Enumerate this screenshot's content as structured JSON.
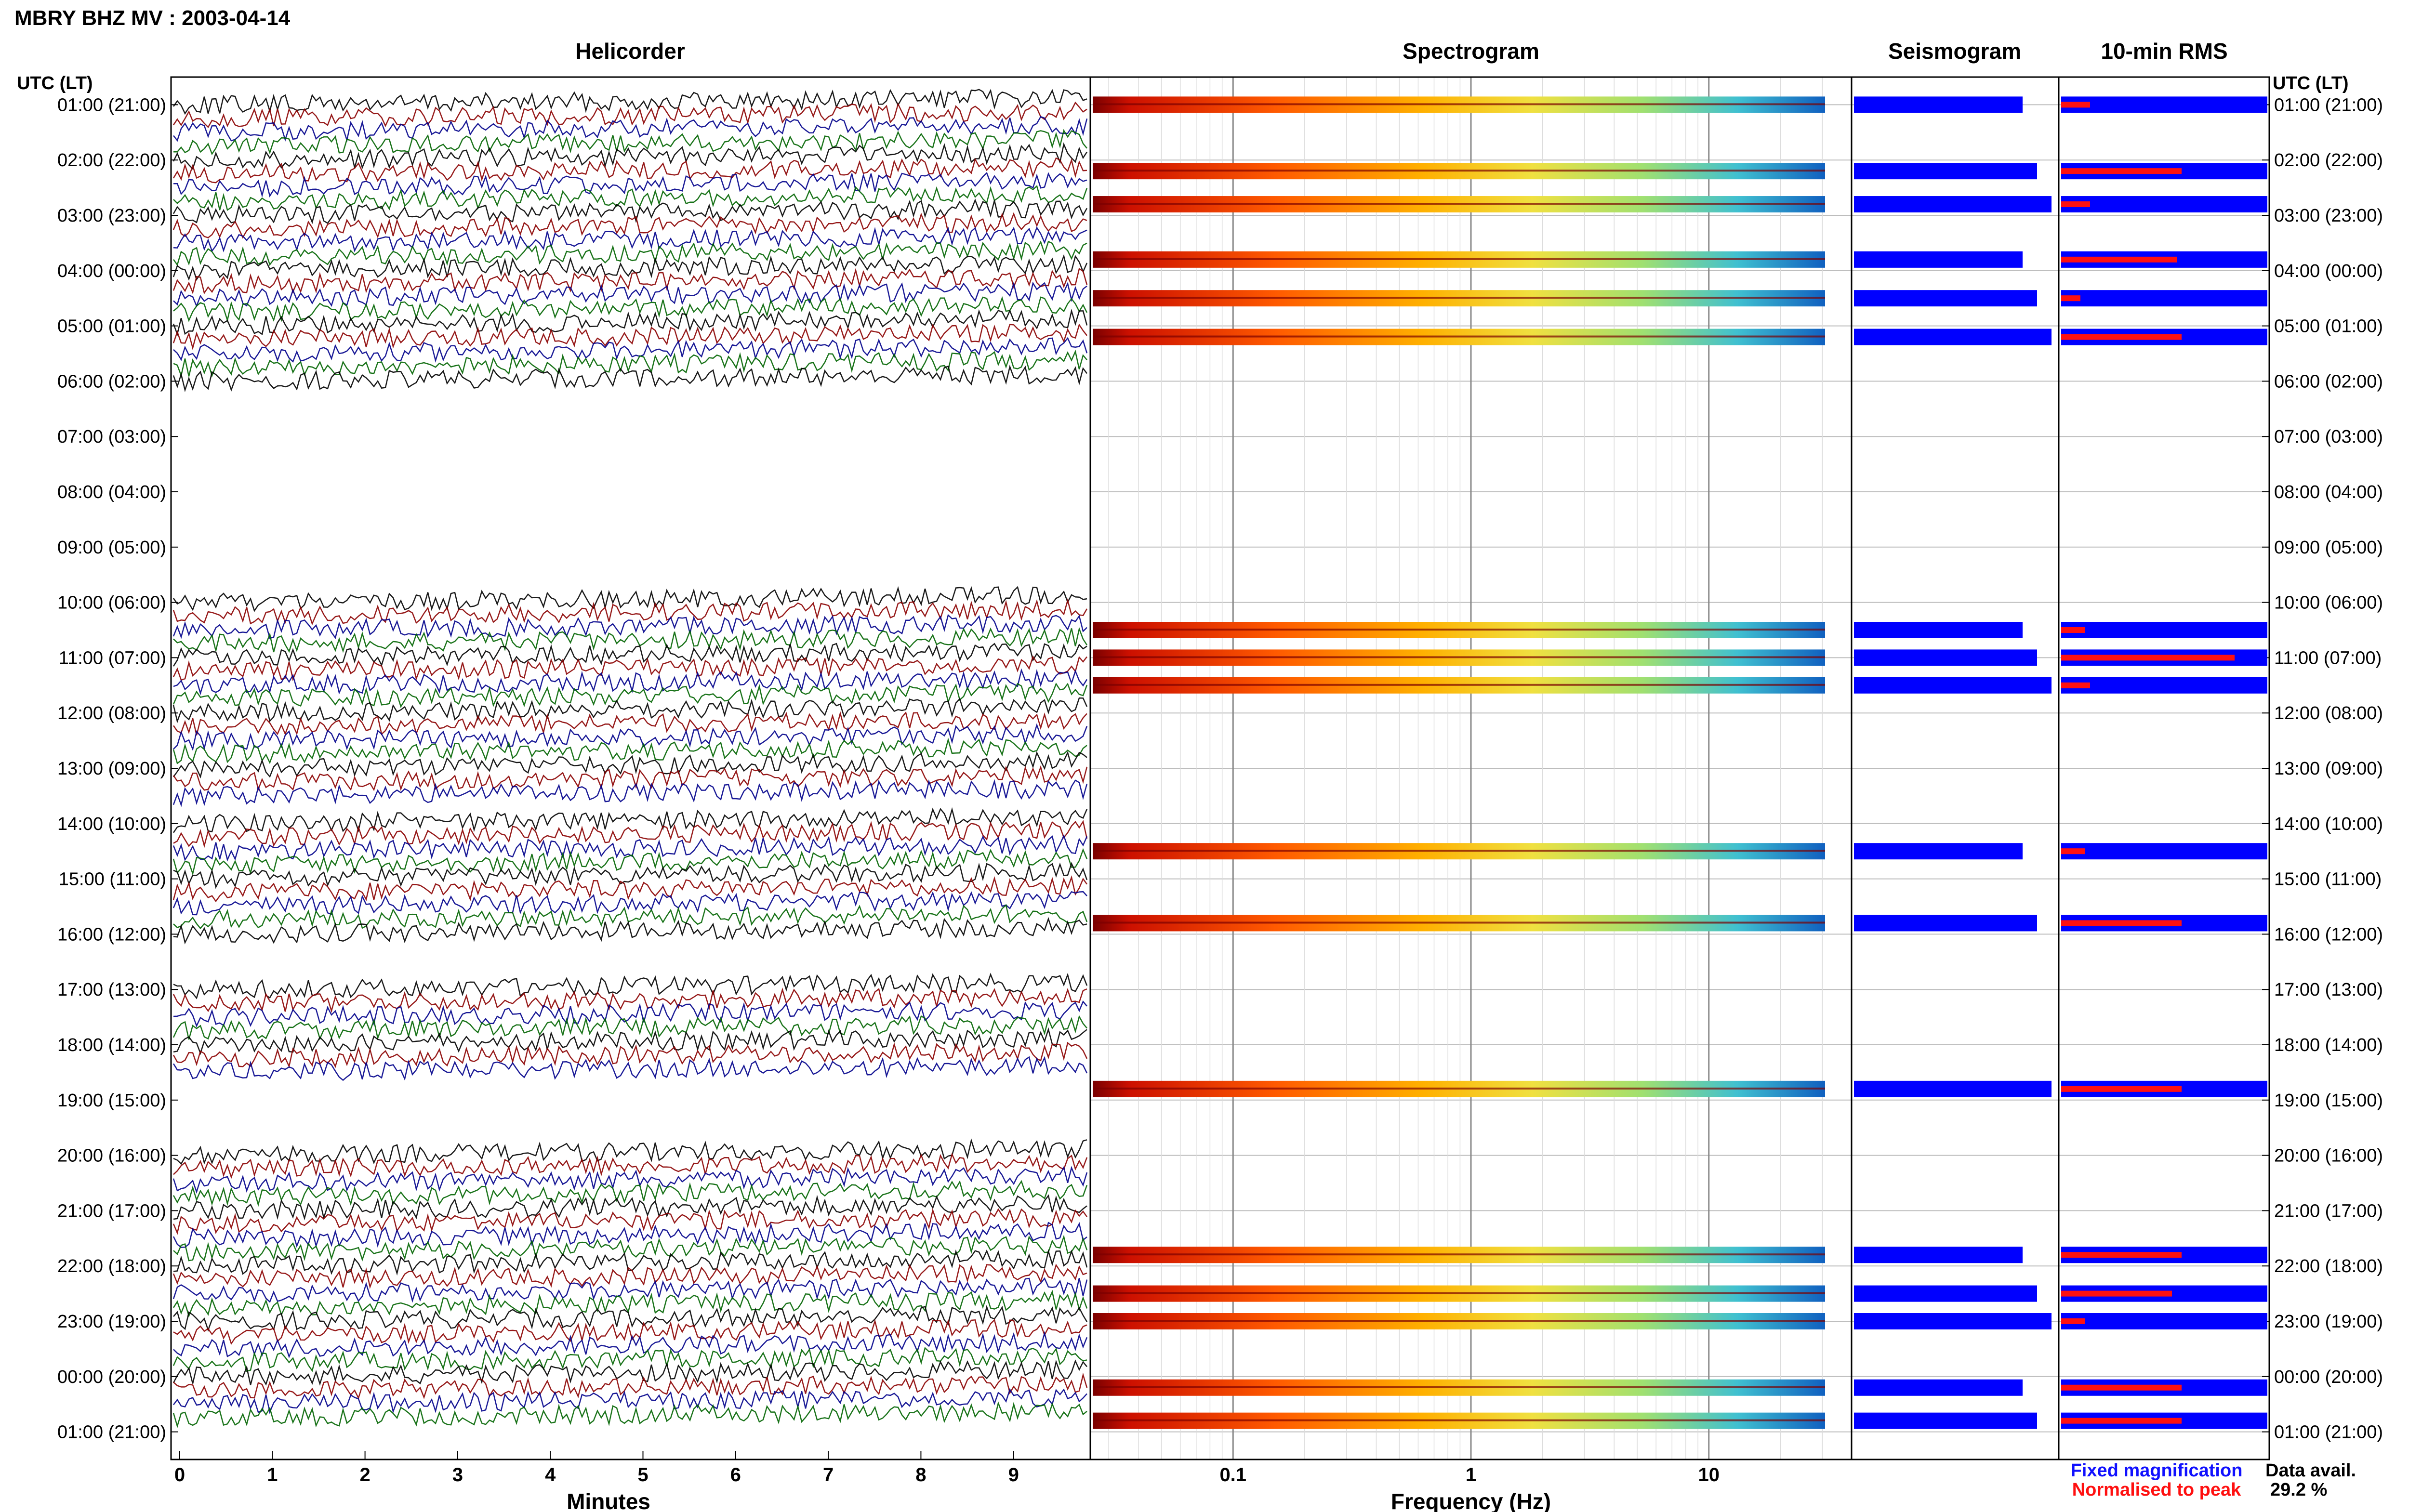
{
  "header": {
    "title": "MBRY BHZ MV : 2003-04-14"
  },
  "panels": {
    "helicorder": "Helicorder",
    "spectrogram": "Spectrogram",
    "seismogram": "Seismogram",
    "rms": "10-min RMS"
  },
  "time_axis": {
    "label_left": "UTC (LT)",
    "label_right": "UTC (LT)",
    "labels": [
      "01:00 (21:00)",
      "02:00 (22:00)",
      "03:00 (23:00)",
      "04:00 (00:00)",
      "05:00 (01:00)",
      "06:00 (02:00)",
      "07:00 (03:00)",
      "08:00 (04:00)",
      "09:00 (05:00)",
      "10:00 (06:00)",
      "11:00 (07:00)",
      "12:00 (08:00)",
      "13:00 (09:00)",
      "14:00 (10:00)",
      "15:00 (11:00)",
      "16:00 (12:00)",
      "17:00 (13:00)",
      "18:00 (14:00)",
      "19:00 (15:00)",
      "20:00 (16:00)",
      "21:00 (17:00)",
      "22:00 (18:00)",
      "23:00 (19:00)",
      "00:00 (20:00)",
      "01:00 (21:00)"
    ]
  },
  "chart_data": [
    {
      "type": "line",
      "title": "Helicorder",
      "xlabel": "Minutes",
      "ylabel": "UTC (LT)",
      "x_ticks": [
        "0",
        "1",
        "2",
        "3",
        "4",
        "5",
        "6",
        "7",
        "8",
        "9"
      ],
      "xlim": [
        0,
        10
      ],
      "series_colors": [
        "#000000",
        "#8b0000",
        "#00008b",
        "#006400"
      ]
    },
    {
      "type": "heatmap",
      "title": "Spectrogram",
      "xlabel": "Frequency (Hz)",
      "x_ticks": [
        "0.1",
        "1",
        "10"
      ],
      "x_scale": "log",
      "data_hours": [
        1,
        2.2,
        2.8,
        3.8,
        4.5,
        5.2,
        10.5,
        11,
        11.5,
        14.5,
        15.8,
        18.8,
        21.8,
        22.5,
        23,
        24.2,
        24.8
      ]
    },
    {
      "type": "bar",
      "title": "10-min RMS",
      "legend": [
        "Fixed magnification",
        "Normalised to peak"
      ],
      "legend_colors": [
        "#1010ff",
        "#ff1010"
      ]
    }
  ],
  "footer": {
    "legend_fixed": "Fixed magnification",
    "legend_norm": "Normalised to peak",
    "avail_label": "Data avail.",
    "avail_value": "29.2 %"
  }
}
